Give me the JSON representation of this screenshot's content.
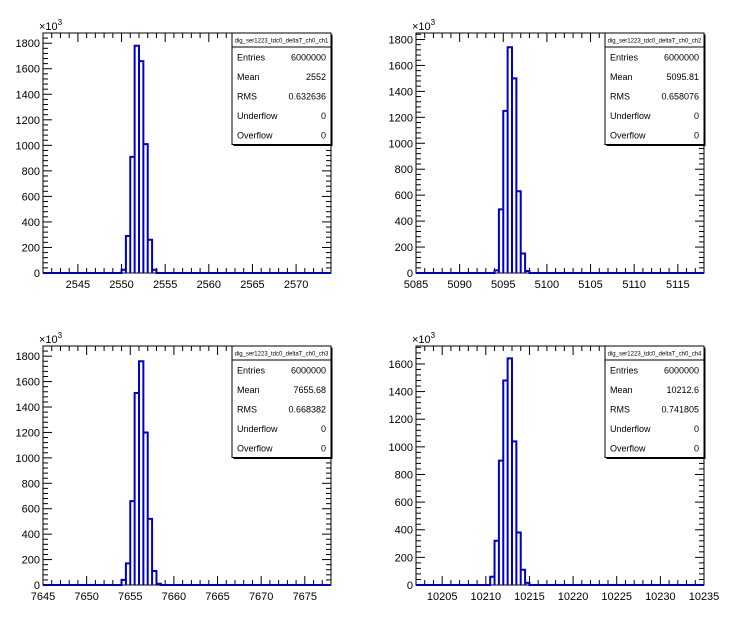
{
  "chart_data": [
    {
      "type": "bar",
      "title": "",
      "xlabel": "",
      "ylabel": "",
      "multiplier_label": "×10",
      "multiplier_exp": "3",
      "xlim": [
        2541,
        2574
      ],
      "ylim": [
        0,
        1880
      ],
      "xticks": [
        "2545",
        "2550",
        "2555",
        "2560",
        "2565",
        "2570"
      ],
      "yticks": [
        "0",
        "200",
        "400",
        "600",
        "800",
        "1000",
        "1200",
        "1400",
        "1600",
        "1800"
      ],
      "bins": [
        {
          "x0": 2550.0,
          "x1": 2550.5,
          "y": 25
        },
        {
          "x0": 2550.5,
          "x1": 2551.0,
          "y": 290
        },
        {
          "x0": 2551.0,
          "x1": 2551.5,
          "y": 910
        },
        {
          "x0": 2551.5,
          "x1": 2552.0,
          "y": 1780
        },
        {
          "x0": 2552.0,
          "x1": 2552.5,
          "y": 1660
        },
        {
          "x0": 2552.5,
          "x1": 2553.0,
          "y": 1010
        },
        {
          "x0": 2553.0,
          "x1": 2553.5,
          "y": 260
        },
        {
          "x0": 2553.5,
          "x1": 2554.0,
          "y": 25
        }
      ],
      "stats": {
        "name": "dig_ser1223_tdc0_deltaT_ch0_ch1",
        "rows": [
          {
            "label": "Entries",
            "value": "6000000"
          },
          {
            "label": "Mean",
            "value": "2552"
          },
          {
            "label": "RMS",
            "value": "0.632636"
          },
          {
            "label": "Underflow",
            "value": "0"
          },
          {
            "label": "Overflow",
            "value": "0"
          }
        ]
      }
    },
    {
      "type": "bar",
      "title": "",
      "xlabel": "",
      "ylabel": "",
      "multiplier_label": "×10",
      "multiplier_exp": "3",
      "xlim": [
        5085,
        5118
      ],
      "ylim": [
        0,
        1850
      ],
      "xticks": [
        "5085",
        "5090",
        "5095",
        "5100",
        "5105",
        "5110",
        "5115"
      ],
      "yticks": [
        "0",
        "200",
        "400",
        "600",
        "800",
        "1000",
        "1200",
        "1400",
        "1600",
        "1800"
      ],
      "bins": [
        {
          "x0": 5094.0,
          "x1": 5094.5,
          "y": 20
        },
        {
          "x0": 5094.5,
          "x1": 5095.0,
          "y": 490
        },
        {
          "x0": 5095.0,
          "x1": 5095.5,
          "y": 1250
        },
        {
          "x0": 5095.5,
          "x1": 5096.0,
          "y": 1740
        },
        {
          "x0": 5096.0,
          "x1": 5096.5,
          "y": 1500
        },
        {
          "x0": 5096.5,
          "x1": 5097.0,
          "y": 630
        },
        {
          "x0": 5097.0,
          "x1": 5097.5,
          "y": 150
        },
        {
          "x0": 5097.5,
          "x1": 5098.0,
          "y": 15
        }
      ],
      "stats": {
        "name": "dig_ser1223_tdc0_deltaT_ch0_ch2",
        "rows": [
          {
            "label": "Entries",
            "value": "6000000"
          },
          {
            "label": "Mean",
            "value": "5095.81"
          },
          {
            "label": "RMS",
            "value": "0.658076"
          },
          {
            "label": "Underflow",
            "value": "0"
          },
          {
            "label": "Overflow",
            "value": "0"
          }
        ]
      }
    },
    {
      "type": "bar",
      "title": "",
      "xlabel": "",
      "ylabel": "",
      "multiplier_label": "×10",
      "multiplier_exp": "3",
      "xlim": [
        7645,
        7678
      ],
      "ylim": [
        0,
        1880
      ],
      "xticks": [
        "7645",
        "7650",
        "7655",
        "7660",
        "7665",
        "7670",
        "7675"
      ],
      "yticks": [
        "0",
        "200",
        "400",
        "600",
        "800",
        "1000",
        "1200",
        "1400",
        "1600",
        "1800"
      ],
      "bins": [
        {
          "x0": 7654.0,
          "x1": 7654.5,
          "y": 40
        },
        {
          "x0": 7654.5,
          "x1": 7655.0,
          "y": 170
        },
        {
          "x0": 7655.0,
          "x1": 7655.5,
          "y": 660
        },
        {
          "x0": 7655.5,
          "x1": 7656.0,
          "y": 1510
        },
        {
          "x0": 7656.0,
          "x1": 7656.5,
          "y": 1760
        },
        {
          "x0": 7656.5,
          "x1": 7657.0,
          "y": 1200
        },
        {
          "x0": 7657.0,
          "x1": 7657.5,
          "y": 520
        },
        {
          "x0": 7657.5,
          "x1": 7658.0,
          "y": 110
        },
        {
          "x0": 7658.0,
          "x1": 7658.5,
          "y": 10
        }
      ],
      "stats": {
        "name": "dig_ser1223_tdc0_deltaT_ch0_ch3",
        "rows": [
          {
            "label": "Entries",
            "value": "6000000"
          },
          {
            "label": "Mean",
            "value": "7655.68"
          },
          {
            "label": "RMS",
            "value": "0.668382"
          },
          {
            "label": "Underflow",
            "value": "0"
          },
          {
            "label": "Overflow",
            "value": "0"
          }
        ]
      }
    },
    {
      "type": "bar",
      "title": "",
      "xlabel": "",
      "ylabel": "",
      "multiplier_label": "×10",
      "multiplier_exp": "3",
      "xlim": [
        10202,
        10235
      ],
      "ylim": [
        0,
        1730
      ],
      "xticks": [
        "10205",
        "10210",
        "10215",
        "10220",
        "10225",
        "10230",
        "10235"
      ],
      "yticks": [
        "0",
        "200",
        "400",
        "600",
        "800",
        "1000",
        "1200",
        "1400",
        "1600"
      ],
      "bins": [
        {
          "x0": 10210.5,
          "x1": 10211.0,
          "y": 60
        },
        {
          "x0": 10211.0,
          "x1": 10211.5,
          "y": 320
        },
        {
          "x0": 10211.5,
          "x1": 10212.0,
          "y": 900
        },
        {
          "x0": 10212.0,
          "x1": 10212.5,
          "y": 1480
        },
        {
          "x0": 10212.5,
          "x1": 10213.0,
          "y": 1640
        },
        {
          "x0": 10213.0,
          "x1": 10213.5,
          "y": 1040
        },
        {
          "x0": 10213.5,
          "x1": 10214.0,
          "y": 380
        },
        {
          "x0": 10214.0,
          "x1": 10214.5,
          "y": 110
        },
        {
          "x0": 10214.5,
          "x1": 10215.0,
          "y": 15
        }
      ],
      "stats": {
        "name": "dig_ser1223_tdc0_deltaT_ch0_ch4",
        "rows": [
          {
            "label": "Entries",
            "value": "6000000"
          },
          {
            "label": "Mean",
            "value": "10212.6"
          },
          {
            "label": "RMS",
            "value": "0.741805"
          },
          {
            "label": "Underflow",
            "value": "0"
          },
          {
            "label": "Overflow",
            "value": "0"
          }
        ]
      }
    }
  ]
}
